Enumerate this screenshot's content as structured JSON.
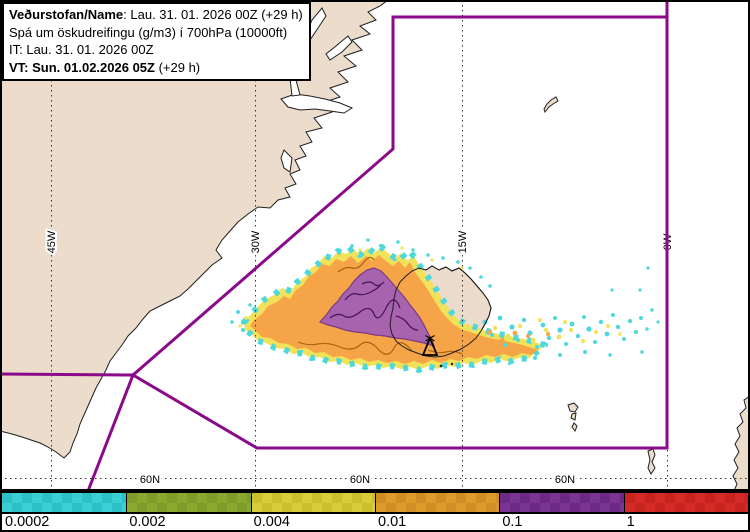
{
  "header": {
    "line1_bold": "Veðurstofan/Name",
    "line1_rest": ": Lau. 31. 01. 2026 00Z (+29 h)",
    "line2": "Spá um öskudreifingu (g/m3) í 700hPa (10000ft)",
    "line3": "IT: Lau. 31. 01. 2026 00Z",
    "line4_bold": "VT: Sun. 01.02.2026 05Z",
    "line4_rest": " (+29 h)"
  },
  "map": {
    "graticule": {
      "meridians": [
        {
          "label": "45W"
        },
        {
          "label": "30W"
        },
        {
          "label": "15W"
        },
        {
          "label": "0W"
        }
      ],
      "parallels": [
        {
          "label": "60N"
        },
        {
          "label": "60N"
        },
        {
          "label": "60N"
        }
      ]
    },
    "colors": {
      "boundary": "#8A0A8A",
      "land": "#EBDCCB",
      "ocean": "#FFFFFF",
      "plume_cyan": "#4FD8DC",
      "plume_yellow": "#F2E259",
      "plume_orange": "#F5A548",
      "plume_purple": "#A763AE"
    }
  },
  "legend": {
    "items": [
      {
        "value": "0.0002",
        "color_a": "#3BCFD4",
        "color_b": "#2CC0C7"
      },
      {
        "value": "0.002",
        "color_a": "#8BA92F",
        "color_b": "#7E9C29"
      },
      {
        "value": "0.004",
        "color_a": "#D8CC38",
        "color_b": "#CBBF2F"
      },
      {
        "value": "0.01",
        "color_a": "#DE9A2B",
        "color_b": "#D18E25"
      },
      {
        "value": "0.1",
        "color_a": "#7B3394",
        "color_b": "#6D2A85"
      },
      {
        "value": "1",
        "color_a": "#D52B27",
        "color_b": "#C7231F"
      }
    ]
  }
}
